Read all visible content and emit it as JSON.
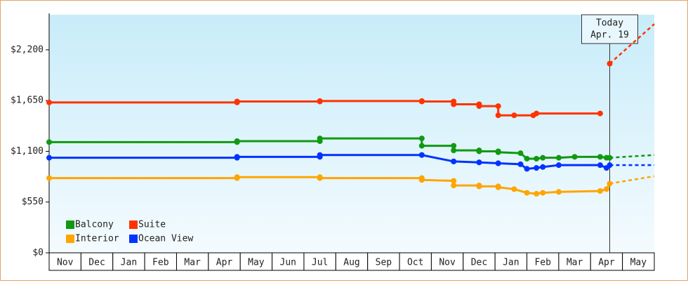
{
  "chart_data": {
    "type": "line",
    "x_categories": [
      "Nov",
      "Dec",
      "Jan",
      "Feb",
      "Mar",
      "Apr",
      "May",
      "Jun",
      "Jul",
      "Aug",
      "Sep",
      "Oct",
      "Nov",
      "Dec",
      "Jan",
      "Feb",
      "Mar",
      "Apr",
      "May"
    ],
    "xlim": [
      0,
      19
    ],
    "ylim": [
      0,
      2580
    ],
    "yticks": [
      {
        "value": 0,
        "label": "$0"
      },
      {
        "value": 550,
        "label": "$550"
      },
      {
        "value": 1100,
        "label": "$1,100"
      },
      {
        "value": 1650,
        "label": "$1,650"
      },
      {
        "value": 2200,
        "label": "$2,200"
      }
    ],
    "legend_position": "lower left",
    "series": [
      {
        "name": "Balcony",
        "color": "#119911",
        "x": [
          0,
          5.9,
          5.9,
          8.5,
          8.5,
          11.7,
          11.7,
          12.7,
          12.7,
          13.5,
          13.5,
          14.1,
          14.1,
          14.8,
          15.0,
          15.3,
          15.5,
          16.0,
          16.5,
          17.3,
          17.5,
          17.6
        ],
        "values": [
          1200,
          1200,
          1210,
          1210,
          1240,
          1240,
          1160,
          1160,
          1110,
          1110,
          1100,
          1100,
          1090,
          1080,
          1020,
          1020,
          1030,
          1030,
          1040,
          1040,
          1030,
          1030
        ],
        "forecast_x": [
          17.6,
          19
        ],
        "forecast_values": [
          1030,
          1060
        ]
      },
      {
        "name": "Suite",
        "color": "#ff3300",
        "x": [
          0,
          5.9,
          5.9,
          8.5,
          8.5,
          11.7,
          11.7,
          12.7,
          12.7,
          13.5,
          13.5,
          14.1,
          14.1,
          14.6,
          15.2,
          15.3,
          17.3,
          17.45,
          17.6
        ],
        "values": [
          1630,
          1630,
          1640,
          1640,
          1645,
          1645,
          1640,
          1640,
          1610,
          1610,
          1590,
          1590,
          1490,
          1490,
          1490,
          1510,
          1510,
          null,
          2050
        ],
        "forecast_x": [
          17.6,
          19
        ],
        "forecast_values": [
          2050,
          2480
        ]
      },
      {
        "name": "Interior",
        "color": "#ffa500",
        "x": [
          0,
          5.9,
          5.9,
          8.5,
          8.5,
          11.7,
          11.7,
          12.7,
          12.7,
          13.5,
          13.5,
          14.1,
          14.1,
          14.6,
          15.0,
          15.3,
          15.5,
          16.0,
          17.3,
          17.5,
          17.6
        ],
        "values": [
          810,
          810,
          820,
          820,
          810,
          810,
          790,
          780,
          730,
          730,
          720,
          720,
          710,
          690,
          650,
          640,
          650,
          660,
          670,
          690,
          750
        ],
        "forecast_x": [
          17.6,
          19
        ],
        "forecast_values": [
          750,
          830
        ]
      },
      {
        "name": "Ocean View",
        "color": "#0033ff",
        "x": [
          0,
          5.9,
          5.9,
          8.5,
          8.5,
          11.7,
          11.7,
          12.7,
          12.7,
          13.5,
          13.5,
          14.1,
          14.1,
          14.8,
          15.0,
          15.3,
          15.5,
          16.0,
          17.3,
          17.5,
          17.6
        ],
        "values": [
          1030,
          1030,
          1040,
          1040,
          1060,
          1060,
          1060,
          990,
          990,
          980,
          980,
          970,
          970,
          960,
          910,
          920,
          930,
          950,
          950,
          920,
          950
        ],
        "forecast_x": [
          17.6,
          19
        ],
        "forecast_values": [
          950,
          950
        ]
      }
    ],
    "today": {
      "x": 17.6,
      "lines": [
        "Today",
        "Apr. 19"
      ]
    }
  }
}
